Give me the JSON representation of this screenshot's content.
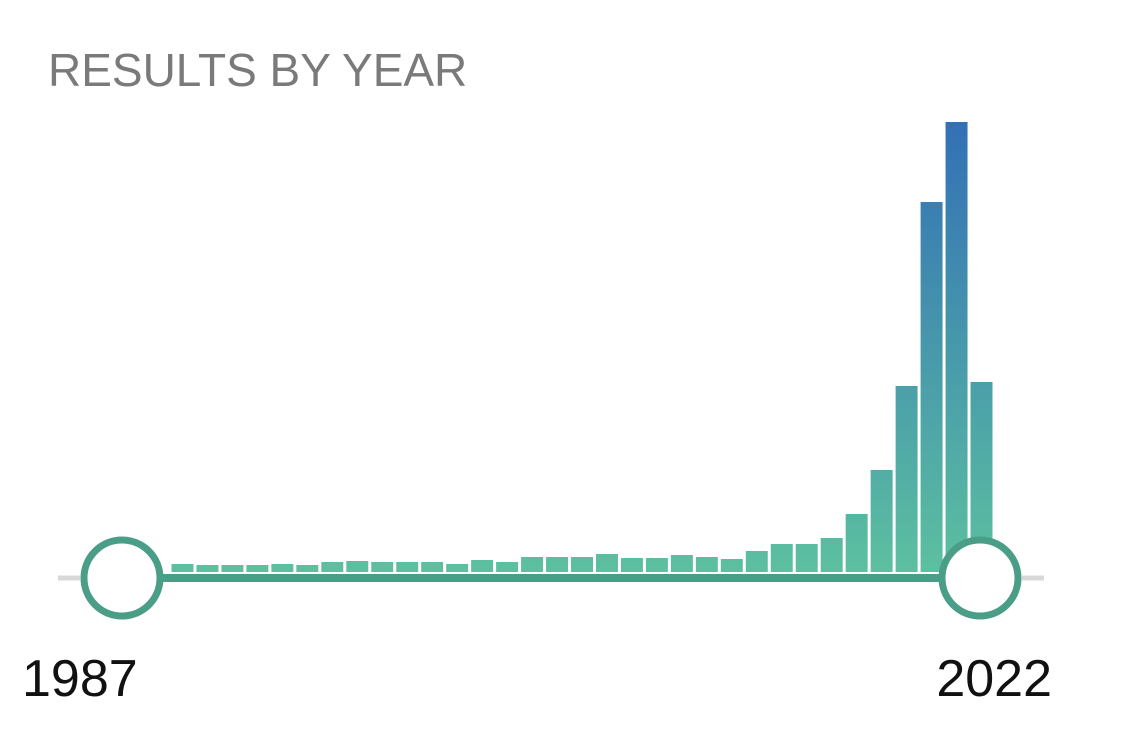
{
  "title": "RESULTS BY YEAR",
  "chart_data": {
    "type": "bar",
    "values": [
      8,
      7,
      7,
      7,
      8,
      7,
      10,
      11,
      10,
      10,
      10,
      8,
      12,
      10,
      15,
      15,
      15,
      18,
      14,
      14,
      17,
      15,
      13,
      21,
      28,
      28,
      34,
      58,
      102,
      186,
      370,
      450,
      190
    ],
    "color_bottom": "#5cc0a0",
    "color_top": "#3270b6"
  },
  "slider": {
    "start_label": "1987",
    "end_label": "2022",
    "color": "#4a9e88"
  }
}
